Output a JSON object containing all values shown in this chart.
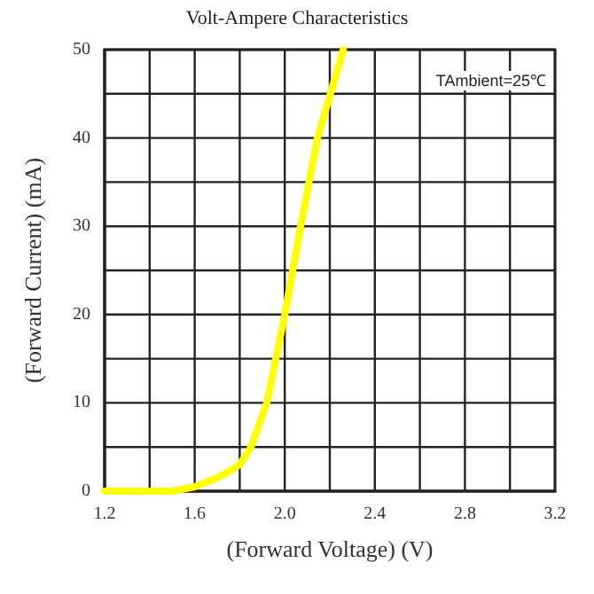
{
  "chart_data": {
    "type": "line",
    "title": "Volt-Ampere Characteristics",
    "xlabel": "(Forward Voltage) (V)",
    "ylabel": "(Forward Current) (mA)",
    "annotations": [
      "TAmbient=25℃"
    ],
    "x": [
      1.2,
      1.5,
      1.6,
      1.7,
      1.8,
      1.85,
      1.92,
      2.0,
      2.07,
      2.145,
      2.26
    ],
    "series": [
      {
        "color": "#ffff00",
        "values": [
          0,
          0,
          0.5,
          1.5,
          3,
          5,
          10,
          20,
          30,
          40,
          50
        ]
      }
    ],
    "xlim": [
      1.2,
      3.2
    ],
    "xticks": [
      {
        "value": 1.2,
        "label": "1.2"
      },
      {
        "value": 1.4,
        "label": null
      },
      {
        "value": 1.6,
        "label": "1.6"
      },
      {
        "value": 1.8,
        "label": null
      },
      {
        "value": 2.0,
        "label": "2.0"
      },
      {
        "value": 2.2,
        "label": null
      },
      {
        "value": 2.4,
        "label": "2.4"
      },
      {
        "value": 2.6,
        "label": null
      },
      {
        "value": 2.8,
        "label": "2.8"
      },
      {
        "value": 3.0,
        "label": null
      },
      {
        "value": 3.2,
        "label": "3.2"
      }
    ],
    "ylim": [
      0,
      50
    ],
    "yticks": [
      0,
      {
        "value": 5,
        "label": null
      },
      10,
      {
        "value": 15,
        "label": null
      },
      20,
      {
        "value": 25,
        "label": null
      },
      30,
      {
        "value": 35,
        "label": null
      },
      40,
      {
        "value": 45,
        "label": null
      },
      50
    ],
    "grid": true,
    "marker": "none",
    "line_style": "solid"
  }
}
